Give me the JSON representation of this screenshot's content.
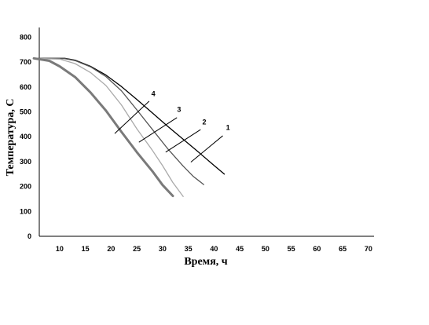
{
  "chart_data": {
    "type": "line",
    "xlabel": "Время, ч",
    "ylabel": "Температура, С",
    "xlim": [
      5,
      72
    ],
    "ylim": [
      0,
      800
    ],
    "x_ticks": [
      "10",
      "15",
      "20",
      "25",
      "30",
      "35",
      "40",
      "45",
      "50",
      "55",
      "60",
      "65",
      "70"
    ],
    "y_ticks": [
      "0",
      "100",
      "200",
      "300",
      "400",
      "500",
      "600",
      "700",
      "800"
    ],
    "grid": false,
    "legend": "none",
    "series": [
      {
        "name": "1",
        "color": "#000000",
        "points": [
          [
            5,
            715
          ],
          [
            11,
            715
          ],
          [
            13,
            708
          ],
          [
            16,
            683
          ],
          [
            19,
            648
          ],
          [
            22,
            602
          ],
          [
            25,
            550
          ],
          [
            28,
            496
          ],
          [
            31,
            442
          ],
          [
            34,
            390
          ],
          [
            37,
            338
          ],
          [
            40,
            285
          ],
          [
            42,
            250
          ]
        ]
      },
      {
        "name": "2",
        "color": "#555555",
        "points": [
          [
            5,
            715
          ],
          [
            11,
            714
          ],
          [
            13,
            706
          ],
          [
            16,
            681
          ],
          [
            19,
            642
          ],
          [
            22,
            585
          ],
          [
            25,
            508
          ],
          [
            28,
            430
          ],
          [
            31,
            352
          ],
          [
            34,
            282
          ],
          [
            36,
            240
          ],
          [
            38,
            208
          ]
        ]
      },
      {
        "name": "3",
        "color": "#aaaaaa",
        "points": [
          [
            5,
            715
          ],
          [
            10,
            712
          ],
          [
            13,
            694
          ],
          [
            16,
            658
          ],
          [
            19,
            606
          ],
          [
            22,
            528
          ],
          [
            25,
            432
          ],
          [
            28,
            346
          ],
          [
            30,
            284
          ],
          [
            32,
            216
          ],
          [
            34,
            160
          ]
        ]
      },
      {
        "name": "4",
        "color": "#7a7a7a",
        "points": [
          [
            5,
            715
          ],
          [
            8,
            705
          ],
          [
            10,
            683
          ],
          [
            13,
            640
          ],
          [
            16,
            578
          ],
          [
            19,
            505
          ],
          [
            22,
            420
          ],
          [
            25,
            338
          ],
          [
            28,
            262
          ],
          [
            30,
            206
          ],
          [
            32,
            162
          ]
        ]
      }
    ],
    "curve_labels": [
      {
        "text": "1",
        "label_at": [
          42.7,
          428
        ],
        "leader_from": [
          41.7,
          404
        ],
        "leader_to": [
          35.5,
          298
        ]
      },
      {
        "text": "2",
        "label_at": [
          38.1,
          450
        ],
        "leader_from": [
          37.4,
          429
        ],
        "leader_to": [
          30.6,
          338
        ]
      },
      {
        "text": "3",
        "label_at": [
          33.2,
          500
        ],
        "leader_from": [
          32.8,
          477
        ],
        "leader_to": [
          25.4,
          378
        ]
      },
      {
        "text": "4",
        "label_at": [
          28.2,
          563
        ],
        "leader_from": [
          27.4,
          543
        ],
        "leader_to": [
          20.7,
          413
        ]
      }
    ]
  }
}
